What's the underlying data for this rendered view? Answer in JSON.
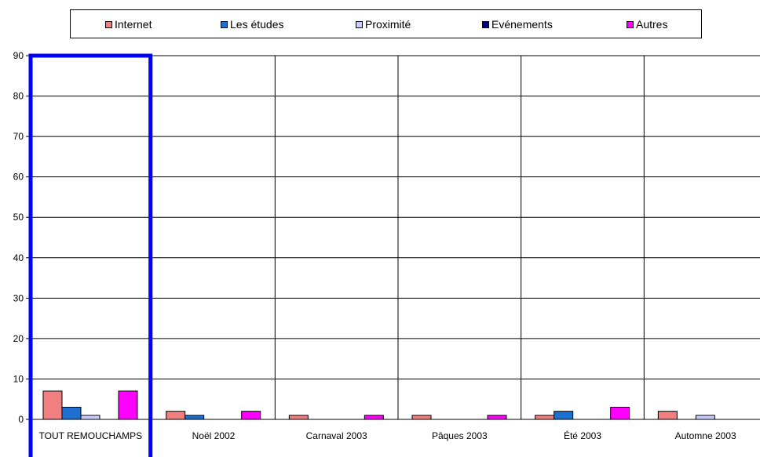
{
  "chart_data": {
    "type": "bar",
    "title": "",
    "xlabel": "",
    "ylabel": "",
    "ylim": [
      0,
      90
    ],
    "yticks": [
      0,
      10,
      20,
      30,
      40,
      50,
      60,
      70,
      80,
      90
    ],
    "grid": true,
    "legend_position": "top",
    "categories": [
      "TOUT REMOUCHAMPS",
      "Noël 2002",
      "Carnaval 2003",
      "Pâques 2003",
      "Été 2003",
      "Automne 2003"
    ],
    "series": [
      {
        "name": "Internet",
        "color": "#f08080",
        "values": [
          7,
          2,
          1,
          1,
          1,
          2
        ]
      },
      {
        "name": "Les études",
        "color": "#1f6fd0",
        "values": [
          3,
          1,
          0,
          0,
          2,
          0
        ]
      },
      {
        "name": "Proximité",
        "color": "#ccccff",
        "values": [
          1,
          0,
          0,
          0,
          0,
          1
        ]
      },
      {
        "name": "Evénements",
        "color": "#000080",
        "values": [
          0,
          0,
          0,
          0,
          0,
          0
        ]
      },
      {
        "name": "Autres",
        "color": "#ff00ff",
        "values": [
          7,
          2,
          1,
          1,
          3,
          0
        ]
      }
    ],
    "highlight": {
      "category": "TOUT REMOUCHAMPS",
      "color": "#0000ff"
    }
  }
}
